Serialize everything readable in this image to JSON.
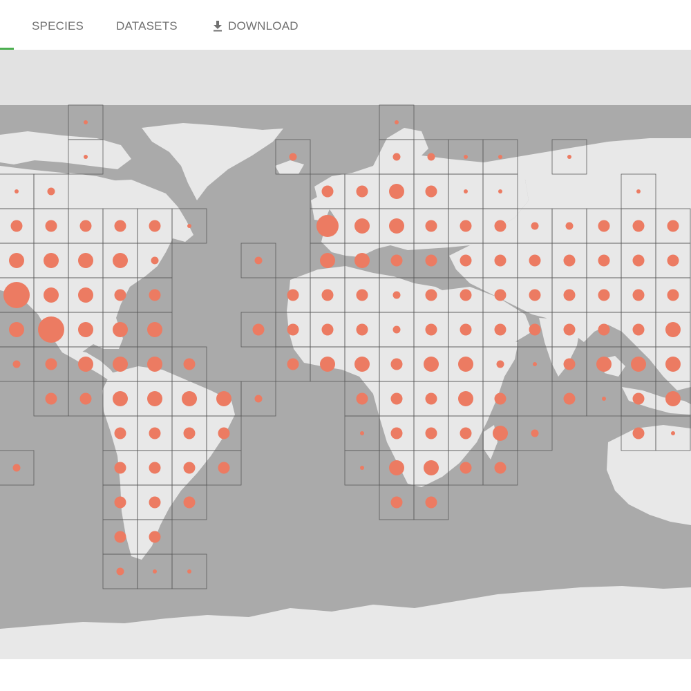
{
  "tabs": [
    {
      "label": "SPECIES",
      "icon": null
    },
    {
      "label": "DATASETS",
      "icon": null
    },
    {
      "label": "DOWNLOAD",
      "icon": "download-icon"
    }
  ],
  "colors": {
    "ocean": "#aaaaaa",
    "land": "#e8e8e8",
    "background": "#e2e2e2",
    "dot": "#ec7b62",
    "grid": "#5a5a5a",
    "active_tab": "#4caf50"
  },
  "map": {
    "description_cells": [
      [
        2,
        0,
        1
      ],
      [
        2,
        1,
        1
      ],
      [
        11,
        0,
        1
      ],
      [
        11,
        1,
        2
      ],
      [
        12,
        1,
        2
      ],
      [
        13,
        1,
        1
      ],
      [
        14,
        1,
        1
      ],
      [
        8,
        1,
        2
      ],
      [
        16,
        1,
        1
      ],
      [
        0,
        2,
        1
      ],
      [
        1,
        2,
        2
      ],
      [
        9,
        2,
        3
      ],
      [
        10,
        2,
        3
      ],
      [
        11,
        2,
        4
      ],
      [
        12,
        2,
        3
      ],
      [
        13,
        2,
        1
      ],
      [
        14,
        2,
        1
      ],
      [
        18,
        2,
        1
      ],
      [
        0,
        3,
        3
      ],
      [
        1,
        3,
        3
      ],
      [
        2,
        3,
        3
      ],
      [
        3,
        3,
        3
      ],
      [
        4,
        3,
        3
      ],
      [
        5,
        3,
        1
      ],
      [
        9,
        3,
        5
      ],
      [
        10,
        3,
        4
      ],
      [
        11,
        3,
        4
      ],
      [
        12,
        3,
        3
      ],
      [
        13,
        3,
        3
      ],
      [
        14,
        3,
        3
      ],
      [
        15,
        3,
        2
      ],
      [
        16,
        3,
        2
      ],
      [
        17,
        3,
        3
      ],
      [
        18,
        3,
        3
      ],
      [
        19,
        3,
        3
      ],
      [
        0,
        4,
        4
      ],
      [
        1,
        4,
        4
      ],
      [
        2,
        4,
        4
      ],
      [
        3,
        4,
        4
      ],
      [
        4,
        4,
        2
      ],
      [
        7,
        4,
        2
      ],
      [
        9,
        4,
        4
      ],
      [
        10,
        4,
        4
      ],
      [
        11,
        4,
        3
      ],
      [
        12,
        4,
        3
      ],
      [
        13,
        4,
        3
      ],
      [
        14,
        4,
        3
      ],
      [
        15,
        4,
        3
      ],
      [
        16,
        4,
        3
      ],
      [
        17,
        4,
        3
      ],
      [
        18,
        4,
        3
      ],
      [
        19,
        4,
        3
      ],
      [
        0,
        5,
        6
      ],
      [
        1,
        5,
        4
      ],
      [
        2,
        5,
        4
      ],
      [
        3,
        5,
        3
      ],
      [
        4,
        5,
        3
      ],
      [
        8,
        5,
        3
      ],
      [
        9,
        5,
        3
      ],
      [
        10,
        5,
        3
      ],
      [
        11,
        5,
        2
      ],
      [
        12,
        5,
        3
      ],
      [
        13,
        5,
        3
      ],
      [
        14,
        5,
        3
      ],
      [
        15,
        5,
        3
      ],
      [
        16,
        5,
        3
      ],
      [
        17,
        5,
        3
      ],
      [
        18,
        5,
        3
      ],
      [
        19,
        5,
        3
      ],
      [
        0,
        6,
        4
      ],
      [
        1,
        6,
        6
      ],
      [
        2,
        6,
        4
      ],
      [
        3,
        6,
        4
      ],
      [
        4,
        6,
        4
      ],
      [
        7,
        6,
        3
      ],
      [
        8,
        6,
        3
      ],
      [
        9,
        6,
        3
      ],
      [
        10,
        6,
        3
      ],
      [
        11,
        6,
        2
      ],
      [
        12,
        6,
        3
      ],
      [
        13,
        6,
        3
      ],
      [
        14,
        6,
        3
      ],
      [
        15,
        6,
        3
      ],
      [
        16,
        6,
        3
      ],
      [
        17,
        6,
        3
      ],
      [
        18,
        6,
        3
      ],
      [
        19,
        6,
        4
      ],
      [
        0,
        7,
        2
      ],
      [
        1,
        7,
        3
      ],
      [
        2,
        7,
        4
      ],
      [
        3,
        7,
        4
      ],
      [
        4,
        7,
        4
      ],
      [
        5,
        7,
        3
      ],
      [
        8,
        7,
        3
      ],
      [
        9,
        7,
        4
      ],
      [
        10,
        7,
        4
      ],
      [
        11,
        7,
        3
      ],
      [
        12,
        7,
        4
      ],
      [
        13,
        7,
        4
      ],
      [
        14,
        7,
        2
      ],
      [
        15,
        7,
        1
      ],
      [
        16,
        7,
        3
      ],
      [
        17,
        7,
        4
      ],
      [
        18,
        7,
        4
      ],
      [
        19,
        7,
        4
      ],
      [
        1,
        8,
        3
      ],
      [
        2,
        8,
        3
      ],
      [
        3,
        8,
        4
      ],
      [
        4,
        8,
        4
      ],
      [
        5,
        8,
        4
      ],
      [
        6,
        8,
        4
      ],
      [
        7,
        8,
        2
      ],
      [
        10,
        8,
        3
      ],
      [
        11,
        8,
        3
      ],
      [
        12,
        8,
        3
      ],
      [
        13,
        8,
        4
      ],
      [
        14,
        8,
        3
      ],
      [
        16,
        8,
        3
      ],
      [
        17,
        8,
        1
      ],
      [
        18,
        8,
        3
      ],
      [
        19,
        8,
        4
      ],
      [
        3,
        9,
        3
      ],
      [
        4,
        9,
        3
      ],
      [
        5,
        9,
        3
      ],
      [
        6,
        9,
        3
      ],
      [
        10,
        9,
        1
      ],
      [
        11,
        9,
        3
      ],
      [
        12,
        9,
        3
      ],
      [
        13,
        9,
        3
      ],
      [
        14,
        9,
        4
      ],
      [
        15,
        9,
        2
      ],
      [
        18,
        9,
        3
      ],
      [
        19,
        9,
        1
      ],
      [
        0,
        10,
        2
      ],
      [
        3,
        10,
        3
      ],
      [
        4,
        10,
        3
      ],
      [
        5,
        10,
        3
      ],
      [
        6,
        10,
        3
      ],
      [
        10,
        10,
        1
      ],
      [
        11,
        10,
        4
      ],
      [
        12,
        10,
        4
      ],
      [
        13,
        10,
        3
      ],
      [
        14,
        10,
        3
      ],
      [
        3,
        11,
        3
      ],
      [
        4,
        11,
        3
      ],
      [
        5,
        11,
        3
      ],
      [
        11,
        11,
        3
      ],
      [
        12,
        11,
        3
      ],
      [
        3,
        12,
        3
      ],
      [
        4,
        12,
        3
      ],
      [
        3,
        13,
        2
      ],
      [
        4,
        13,
        1
      ],
      [
        5,
        13,
        1
      ]
    ],
    "empty_cells": [
      [
        2,
        0
      ],
      [
        8,
        1
      ],
      [
        16,
        1
      ],
      [
        5,
        3
      ],
      [
        7,
        4
      ],
      [
        7,
        6
      ],
      [
        6,
        8
      ],
      [
        7,
        8
      ],
      [
        0,
        10
      ],
      [
        19,
        9
      ],
      [
        0,
        5
      ]
    ]
  }
}
